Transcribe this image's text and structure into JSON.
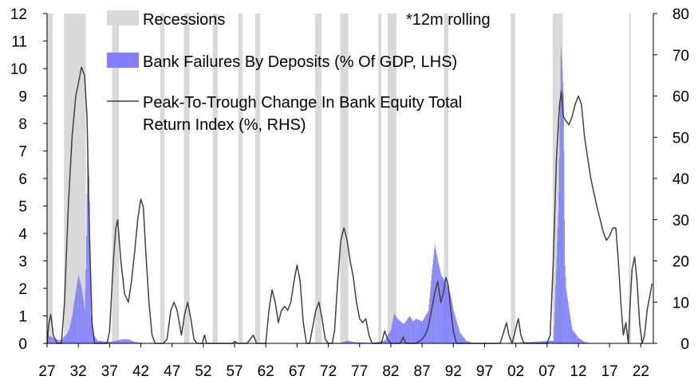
{
  "chart_data": {
    "type": "bar",
    "note": "*12m rolling",
    "legend": {
      "recessions": "Recessions",
      "failures": "Bank Failures By Deposits (% Of GDP, LHS)",
      "equity_line1": "Peak-To-Trough Change In Bank Equity Total",
      "equity_line2": "Return Index (%, RHS)"
    },
    "colors": {
      "recession": "#d9d9d9",
      "failures": "#8080ff",
      "equity": "#404040"
    },
    "x_range": [
      1927,
      2024
    ],
    "x_tick_years": [
      1927,
      1932,
      1937,
      1942,
      1947,
      1952,
      1957,
      1962,
      1967,
      1972,
      1977,
      1982,
      1987,
      1992,
      1997,
      2002,
      2007,
      2012,
      2017,
      2022
    ],
    "x_tick_labels": [
      "27",
      "32",
      "37",
      "42",
      "47",
      "52",
      "57",
      "62",
      "67",
      "72",
      "77",
      "82",
      "87",
      "92",
      "97",
      "02",
      "07",
      "12",
      "17",
      "22"
    ],
    "left_axis": {
      "ylim": [
        0,
        12
      ],
      "ticks": [
        "0",
        "1",
        "2",
        "3",
        "4",
        "5",
        "6",
        "7",
        "8",
        "9",
        "10",
        "11",
        "12"
      ]
    },
    "right_axis": {
      "ylim": [
        0,
        80
      ],
      "ticks": [
        "0",
        "10",
        "20",
        "30",
        "40",
        "50",
        "60",
        "70",
        "80"
      ]
    },
    "recessions": [
      [
        1926.8,
        1927.9
      ],
      [
        1929.7,
        1933.2
      ],
      [
        1937.4,
        1938.5
      ],
      [
        1945.1,
        1945.8
      ],
      [
        1948.9,
        1949.8
      ],
      [
        1953.5,
        1954.3
      ],
      [
        1957.6,
        1958.3
      ],
      [
        1960.3,
        1961.1
      ],
      [
        1969.9,
        1970.9
      ],
      [
        1973.9,
        1975.2
      ],
      [
        1980.0,
        1980.5
      ],
      [
        1981.5,
        1982.9
      ],
      [
        1990.5,
        1991.2
      ],
      [
        2001.2,
        2001.9
      ],
      [
        2007.9,
        2009.5
      ],
      [
        2020.1,
        2020.4
      ]
    ],
    "failures": [
      [
        1927.0,
        0.3
      ],
      [
        1928.0,
        0.2
      ],
      [
        1929.0,
        0.1
      ],
      [
        1930.0,
        0.3
      ],
      [
        1930.5,
        0.5
      ],
      [
        1931.0,
        1.0
      ],
      [
        1931.5,
        1.8
      ],
      [
        1932.0,
        2.5
      ],
      [
        1932.5,
        2.0
      ],
      [
        1933.0,
        1.2
      ],
      [
        1933.2,
        3.0
      ],
      [
        1933.4,
        6.7
      ],
      [
        1933.7,
        6.0
      ],
      [
        1934.0,
        1.0
      ],
      [
        1934.5,
        0.3
      ],
      [
        1935.0,
        0.1
      ],
      [
        1937.0,
        0.05
      ],
      [
        1938.0,
        0.1
      ],
      [
        1939.0,
        0.15
      ],
      [
        1940.0,
        0.15
      ],
      [
        1941.0,
        0.05
      ],
      [
        1942.0,
        0.02
      ],
      [
        1945.0,
        0.0
      ],
      [
        1950.0,
        0.0
      ],
      [
        1960.0,
        0.0
      ],
      [
        1970.0,
        0.02
      ],
      [
        1974.0,
        0.02
      ],
      [
        1975.0,
        0.1
      ],
      [
        1976.0,
        0.05
      ],
      [
        1979.0,
        0.02
      ],
      [
        1981.0,
        0.1
      ],
      [
        1982.0,
        0.5
      ],
      [
        1982.5,
        1.1
      ],
      [
        1983.0,
        0.9
      ],
      [
        1984.0,
        0.7
      ],
      [
        1985.0,
        1.0
      ],
      [
        1985.5,
        0.8
      ],
      [
        1986.0,
        0.9
      ],
      [
        1987.0,
        0.8
      ],
      [
        1988.0,
        1.2
      ],
      [
        1988.5,
        2.5
      ],
      [
        1989.0,
        3.6
      ],
      [
        1989.5,
        3.0
      ],
      [
        1990.0,
        2.5
      ],
      [
        1990.5,
        2.3
      ],
      [
        1991.0,
        2.1
      ],
      [
        1991.5,
        1.8
      ],
      [
        1992.0,
        1.2
      ],
      [
        1993.0,
        0.4
      ],
      [
        1994.0,
        0.1
      ],
      [
        1995.0,
        0.02
      ],
      [
        2000.0,
        0.0
      ],
      [
        2008.0,
        0.1
      ],
      [
        2008.8,
        5.0
      ],
      [
        2009.2,
        11.0
      ],
      [
        2009.6,
        9.0
      ],
      [
        2009.8,
        3.0
      ],
      [
        2010.0,
        2.0
      ],
      [
        2010.5,
        1.2
      ],
      [
        2011.0,
        0.5
      ],
      [
        2012.0,
        0.2
      ],
      [
        2013.0,
        0.05
      ],
      [
        2014.0,
        0.0
      ]
    ],
    "equity": [
      [
        1927.0,
        0
      ],
      [
        1927.3,
        5
      ],
      [
        1927.6,
        7
      ],
      [
        1928.0,
        2
      ],
      [
        1928.6,
        0
      ],
      [
        1929.3,
        0
      ],
      [
        1929.8,
        10
      ],
      [
        1930.4,
        33
      ],
      [
        1931.0,
        50
      ],
      [
        1931.6,
        60
      ],
      [
        1932.0,
        63
      ],
      [
        1932.5,
        67
      ],
      [
        1933.0,
        65
      ],
      [
        1933.4,
        55
      ],
      [
        1933.8,
        25
      ],
      [
        1934.2,
        5
      ],
      [
        1934.6,
        0
      ],
      [
        1936.6,
        0
      ],
      [
        1937.0,
        3
      ],
      [
        1937.6,
        20
      ],
      [
        1938.0,
        28
      ],
      [
        1938.3,
        30
      ],
      [
        1938.8,
        20
      ],
      [
        1939.4,
        12
      ],
      [
        1940.0,
        10
      ],
      [
        1940.5,
        15
      ],
      [
        1941.0,
        22
      ],
      [
        1941.5,
        30
      ],
      [
        1942.0,
        35
      ],
      [
        1942.4,
        33
      ],
      [
        1942.8,
        22
      ],
      [
        1943.3,
        10
      ],
      [
        1943.8,
        2
      ],
      [
        1944.3,
        0
      ],
      [
        1945.6,
        0
      ],
      [
        1946.2,
        1
      ],
      [
        1946.8,
        8
      ],
      [
        1947.3,
        10
      ],
      [
        1947.8,
        8
      ],
      [
        1948.5,
        2
      ],
      [
        1949.0,
        7
      ],
      [
        1949.5,
        10
      ],
      [
        1950.0,
        6
      ],
      [
        1950.5,
        1
      ],
      [
        1951.0,
        0
      ],
      [
        1951.8,
        0
      ],
      [
        1952.2,
        2
      ],
      [
        1952.5,
        0
      ],
      [
        1956.7,
        0
      ],
      [
        1957.0,
        0.5
      ],
      [
        1957.5,
        0
      ],
      [
        1959.0,
        0
      ],
      [
        1959.5,
        1
      ],
      [
        1960.0,
        2
      ],
      [
        1960.5,
        0
      ],
      [
        1962.0,
        0
      ],
      [
        1962.5,
        8
      ],
      [
        1963.0,
        13
      ],
      [
        1963.5,
        10
      ],
      [
        1964.0,
        5
      ],
      [
        1964.5,
        8
      ],
      [
        1965.0,
        9
      ],
      [
        1965.5,
        8
      ],
      [
        1966.0,
        10
      ],
      [
        1966.5,
        15
      ],
      [
        1967.0,
        19
      ],
      [
        1967.5,
        15
      ],
      [
        1968.0,
        5
      ],
      [
        1968.5,
        0
      ],
      [
        1969.0,
        0
      ],
      [
        1969.5,
        4
      ],
      [
        1970.0,
        8
      ],
      [
        1970.5,
        10
      ],
      [
        1971.0,
        6
      ],
      [
        1971.5,
        1
      ],
      [
        1972.0,
        0
      ],
      [
        1972.6,
        0
      ],
      [
        1973.0,
        3
      ],
      [
        1973.5,
        15
      ],
      [
        1974.0,
        25
      ],
      [
        1974.5,
        28
      ],
      [
        1975.0,
        25
      ],
      [
        1975.5,
        20
      ],
      [
        1976.0,
        16
      ],
      [
        1976.5,
        10
      ],
      [
        1977.0,
        6
      ],
      [
        1977.5,
        5
      ],
      [
        1978.0,
        6
      ],
      [
        1978.5,
        2
      ],
      [
        1979.0,
        0
      ],
      [
        1980.5,
        0
      ],
      [
        1981.0,
        3
      ],
      [
        1981.5,
        1
      ],
      [
        1982.0,
        0
      ],
      [
        1983.5,
        0
      ],
      [
        1984.0,
        1.5
      ],
      [
        1984.4,
        0
      ],
      [
        1986.0,
        0
      ],
      [
        1987.0,
        1
      ],
      [
        1987.5,
        2
      ],
      [
        1988.0,
        4
      ],
      [
        1988.5,
        8
      ],
      [
        1989.0,
        12
      ],
      [
        1989.5,
        15
      ],
      [
        1990.0,
        10
      ],
      [
        1990.4,
        12
      ],
      [
        1990.8,
        16
      ],
      [
        1991.2,
        14
      ],
      [
        1991.6,
        8
      ],
      [
        1992.0,
        3
      ],
      [
        1992.5,
        0
      ],
      [
        1999.5,
        0
      ],
      [
        2000.5,
        5
      ],
      [
        2000.9,
        2
      ],
      [
        2001.4,
        0
      ],
      [
        2001.9,
        3
      ],
      [
        2002.4,
        6
      ],
      [
        2002.8,
        2
      ],
      [
        2003.3,
        0
      ],
      [
        2007.0,
        0
      ],
      [
        2007.5,
        2
      ],
      [
        2008.0,
        20
      ],
      [
        2008.5,
        45
      ],
      [
        2009.0,
        58
      ],
      [
        2009.3,
        61
      ],
      [
        2009.6,
        55
      ],
      [
        2010.0,
        54
      ],
      [
        2010.5,
        53
      ],
      [
        2011.0,
        55
      ],
      [
        2011.5,
        58
      ],
      [
        2012.0,
        60
      ],
      [
        2012.5,
        58
      ],
      [
        2013.0,
        50
      ],
      [
        2014.0,
        40
      ],
      [
        2015.0,
        33
      ],
      [
        2016.0,
        27
      ],
      [
        2016.5,
        25
      ],
      [
        2017.0,
        26
      ],
      [
        2017.5,
        28
      ],
      [
        2018.0,
        28
      ],
      [
        2018.4,
        20
      ],
      [
        2018.8,
        10
      ],
      [
        2019.2,
        2
      ],
      [
        2019.6,
        5
      ],
      [
        2020.0,
        0
      ],
      [
        2020.3,
        10
      ],
      [
        2020.6,
        18
      ],
      [
        2021.0,
        21
      ],
      [
        2021.4,
        15
      ],
      [
        2021.8,
        5
      ],
      [
        2022.2,
        0
      ],
      [
        2022.6,
        2
      ],
      [
        2023.0,
        8
      ],
      [
        2023.5,
        12
      ],
      [
        2023.8,
        14.5
      ]
    ]
  }
}
